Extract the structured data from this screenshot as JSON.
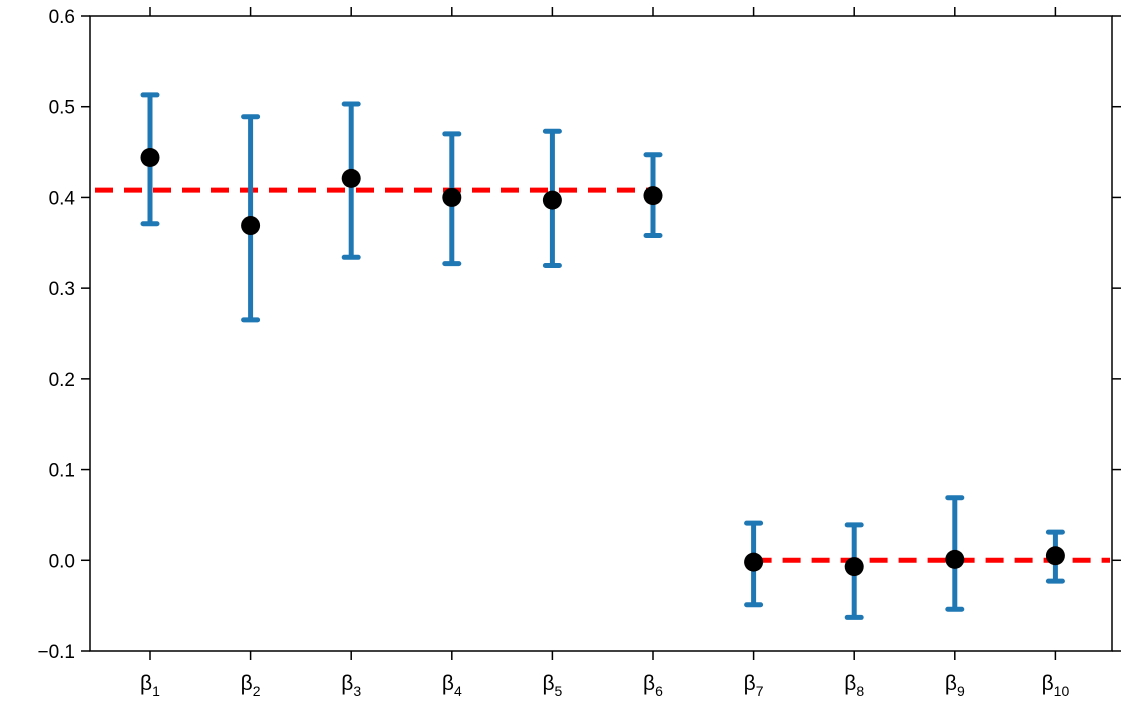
{
  "chart_data": {
    "type": "scatter",
    "title": "",
    "xlabel": "",
    "ylabel": "",
    "ylim": [
      -0.1,
      0.6
    ],
    "yticks": [
      -0.1,
      0.0,
      0.1,
      0.2,
      0.3,
      0.4,
      0.5,
      0.6
    ],
    "ytick_labels": [
      "−0.1",
      "0.0",
      "0.1",
      "0.2",
      "0.3",
      "0.4",
      "0.5",
      "0.6"
    ],
    "grid": false,
    "categories": [
      {
        "base": "β",
        "sub": "1"
      },
      {
        "base": "β",
        "sub": "2"
      },
      {
        "base": "β",
        "sub": "3"
      },
      {
        "base": "β",
        "sub": "4"
      },
      {
        "base": "β",
        "sub": "5"
      },
      {
        "base": "β",
        "sub": "6"
      },
      {
        "base": "β",
        "sub": "7"
      },
      {
        "base": "β",
        "sub": "8"
      },
      {
        "base": "β",
        "sub": "9"
      },
      {
        "base": "β",
        "sub": "10"
      }
    ],
    "estimates": [
      0.444,
      0.369,
      0.421,
      0.4,
      0.397,
      0.402,
      -0.002,
      -0.007,
      0.001,
      0.005
    ],
    "ci_lower": [
      0.371,
      0.265,
      0.334,
      0.327,
      0.325,
      0.358,
      -0.049,
      -0.063,
      -0.054,
      -0.023
    ],
    "ci_upper": [
      0.513,
      0.489,
      0.503,
      0.47,
      0.473,
      0.447,
      0.041,
      0.039,
      0.069,
      0.031
    ],
    "reference_lines": [
      {
        "value": 0.408,
        "from_category": 1,
        "to_category": 6
      },
      {
        "value": 0.0,
        "from_category": 7,
        "to_category": 10
      }
    ],
    "colors": {
      "point": "#000000",
      "errorbar": "#1f77b4",
      "reference": "#ff0000",
      "axis": "#000000"
    }
  }
}
